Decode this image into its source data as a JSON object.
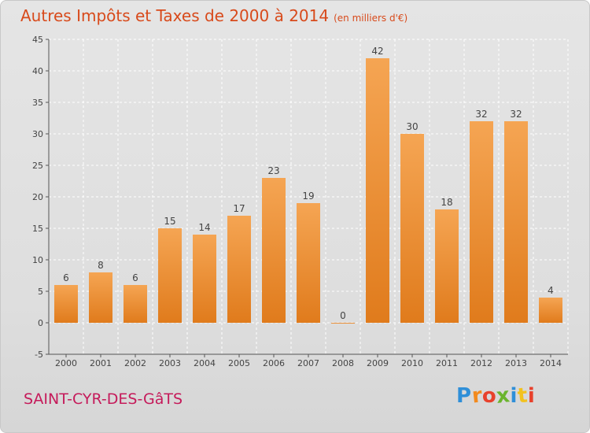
{
  "title": "Autres Impôts et Taxes de 2000 à 2014",
  "title_unit": "(en milliers d'€)",
  "place": "SAINT-CYR-DES-GâTS",
  "logo": {
    "text": "Proxiti",
    "letter_colors": [
      "#2f8fd8",
      "#f28a1e",
      "#e8412c",
      "#6ab42d",
      "#2f8fd8",
      "#f2c21e",
      "#e8412c"
    ]
  },
  "colors": {
    "bar_top": "#f5a553",
    "bar_bottom": "#e07b1c",
    "axis": "#555555",
    "grid": "#ffffff",
    "title": "#d84a1b",
    "place": "#c51a5a"
  },
  "chart_data": {
    "type": "bar",
    "categories": [
      "2000",
      "2001",
      "2002",
      "2003",
      "2004",
      "2005",
      "2006",
      "2007",
      "2008",
      "2009",
      "2010",
      "2011",
      "2012",
      "2013",
      "2014"
    ],
    "values": [
      6,
      8,
      6,
      15,
      14,
      17,
      23,
      19,
      0,
      42,
      30,
      18,
      32,
      32,
      4
    ],
    "title": "Autres Impôts et Taxes de 2000 à 2014",
    "ylabel": "",
    "xlabel": "",
    "ylim": [
      -5,
      45
    ],
    "yticks": [
      -5,
      0,
      5,
      10,
      15,
      20,
      25,
      30,
      35,
      40,
      45
    ],
    "grid": true,
    "data_labels": true
  }
}
